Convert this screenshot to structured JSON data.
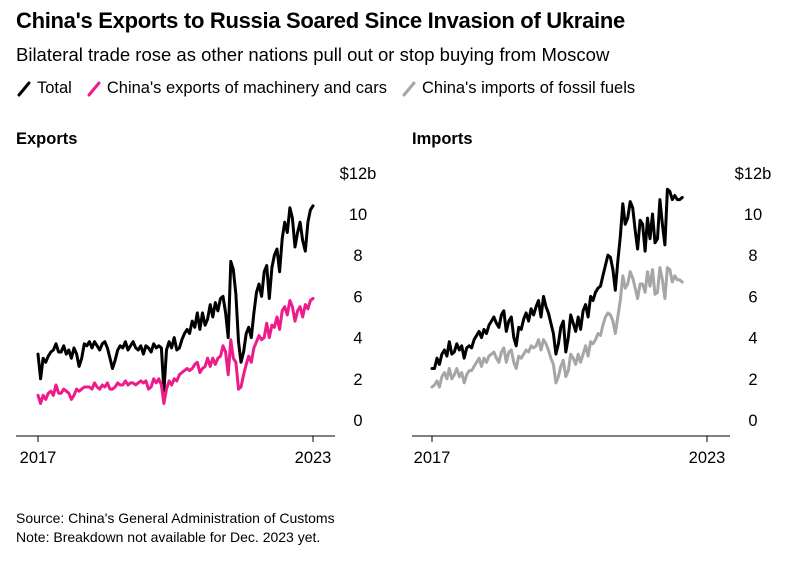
{
  "title": "China's Exports to Russia Soared Since Invasion of Ukraine",
  "subtitle": "Bilateral trade rose as other nations pull out or stop buying from Moscow",
  "legend": [
    {
      "label": "Total",
      "color": "#000000"
    },
    {
      "label": "China's exports of machinery and cars",
      "color": "#ee1b8b"
    },
    {
      "label": "China's imports of fossil fuels",
      "color": "#a6a6a6"
    }
  ],
  "source": "Source: China's General Administration of Customs",
  "note": "Note: Breakdown not available for Dec. 2023 yet.",
  "chart_data": [
    {
      "type": "line",
      "title": "Exports",
      "unit_label": "$12b",
      "ylim": [
        0,
        12
      ],
      "y_ticks": [
        "0",
        "2",
        "4",
        "6",
        "8",
        "10"
      ],
      "x_ticks": [
        "2017",
        "2023"
      ],
      "x_range": [
        "2017-01",
        "2023-12"
      ],
      "series": [
        {
          "name": "Total",
          "color": "#000000",
          "values": [
            3.2,
            2.0,
            3.0,
            2.8,
            3.1,
            3.3,
            3.4,
            3.7,
            3.3,
            3.3,
            3.6,
            3.2,
            3.4,
            3.0,
            3.5,
            3.2,
            2.6,
            3.0,
            3.7,
            3.6,
            3.8,
            3.5,
            3.8,
            3.6,
            3.4,
            3.7,
            3.8,
            3.5,
            3.0,
            2.5,
            2.9,
            3.4,
            3.6,
            3.5,
            3.8,
            3.4,
            3.6,
            3.8,
            3.5,
            3.4,
            3.6,
            3.2,
            3.6,
            3.5,
            3.3,
            3.7,
            3.5,
            3.6,
            3.5,
            1.4,
            3.4,
            3.8,
            3.5,
            4.0,
            3.4,
            3.5,
            3.9,
            4.2,
            4.4,
            4.2,
            4.8,
            4.5,
            5.2,
            4.4,
            5.2,
            4.6,
            4.9,
            5.6,
            5.0,
            5.7,
            5.3,
            5.9,
            6.0,
            5.2,
            4.0,
            7.7,
            7.3,
            6.1,
            3.8,
            2.8,
            3.3,
            4.2,
            4.5,
            4.0,
            5.2,
            6.2,
            6.6,
            6.0,
            7.2,
            7.5,
            5.9,
            7.4,
            8.0,
            8.3,
            7.2,
            8.8,
            9.6,
            9.1,
            10.3,
            9.8,
            8.4,
            9.1,
            9.6,
            8.7,
            8.2,
            9.6,
            10.2,
            10.4
          ]
        },
        {
          "name": "China's exports of machinery and cars",
          "color": "#ee1b8b",
          "values": [
            1.2,
            0.8,
            1.2,
            1.0,
            1.3,
            1.4,
            1.2,
            1.7,
            1.3,
            1.3,
            1.5,
            1.4,
            1.3,
            1.0,
            1.2,
            1.5,
            1.4,
            1.5,
            1.6,
            1.6,
            1.6,
            1.5,
            1.8,
            1.6,
            1.5,
            1.7,
            1.6,
            1.8,
            1.5,
            1.5,
            1.6,
            1.8,
            1.7,
            1.7,
            1.9,
            1.7,
            1.8,
            1.8,
            1.7,
            1.8,
            1.9,
            1.8,
            1.9,
            1.5,
            1.6,
            2.0,
            1.8,
            2.0,
            1.7,
            0.8,
            1.5,
            1.9,
            1.7,
            2.0,
            1.9,
            2.2,
            2.3,
            2.4,
            2.5,
            2.4,
            2.5,
            2.7,
            2.8,
            2.3,
            2.5,
            2.6,
            3.0,
            2.6,
            3.0,
            2.7,
            3.0,
            3.1,
            3.6,
            3.3,
            2.2,
            3.9,
            3.0,
            2.8,
            1.5,
            1.6,
            2.2,
            2.7,
            3.1,
            2.8,
            3.5,
            3.8,
            4.1,
            3.9,
            4.0,
            4.7,
            4.0,
            4.6,
            4.5,
            5.0,
            4.4,
            5.3,
            5.5,
            5.1,
            5.8,
            5.5,
            4.8,
            5.3,
            5.5,
            5.0,
            5.6,
            5.4,
            5.8,
            5.9
          ]
        }
      ]
    },
    {
      "type": "line",
      "title": "Imports",
      "unit_label": "$12b",
      "ylim": [
        0,
        12
      ],
      "y_ticks": [
        "0",
        "2",
        "4",
        "6",
        "8",
        "10"
      ],
      "x_ticks": [
        "2017",
        "2023"
      ],
      "x_range": [
        "2017-01",
        "2023-12"
      ],
      "series": [
        {
          "name": "Total",
          "color": "#000000",
          "values": [
            2.5,
            2.5,
            3.0,
            2.7,
            3.2,
            3.4,
            3.1,
            3.8,
            3.2,
            3.3,
            3.7,
            3.4,
            3.6,
            3.0,
            3.5,
            3.6,
            3.5,
            3.9,
            4.1,
            4.3,
            4.0,
            4.4,
            4.2,
            4.6,
            4.8,
            5.0,
            4.7,
            4.5,
            5.1,
            5.3,
            4.3,
            4.8,
            5.0,
            4.0,
            3.6,
            4.5,
            4.4,
            4.9,
            5.2,
            4.8,
            5.4,
            5.1,
            5.5,
            5.8,
            5.0,
            6.0,
            5.5,
            5.2,
            4.7,
            4.2,
            3.2,
            3.7,
            4.5,
            4.8,
            3.3,
            4.0,
            5.1,
            4.7,
            4.3,
            5.0,
            4.4,
            5.3,
            5.6,
            5.0,
            6.0,
            5.8,
            6.2,
            6.4,
            6.5,
            7.0,
            7.5,
            8.0,
            7.9,
            7.3,
            6.3,
            7.7,
            8.9,
            10.5,
            9.5,
            9.8,
            10.6,
            10.3,
            9.2,
            8.3,
            9.7,
            9.5,
            8.2,
            9.8,
            8.8,
            10.0,
            8.6,
            8.8,
            10.7,
            9.5,
            8.5,
            11.2,
            11.1,
            10.7,
            10.9,
            10.7,
            10.7,
            10.8
          ]
        },
        {
          "name": "China's imports of fossil fuels",
          "color": "#a6a6a6",
          "values": [
            1.6,
            1.7,
            1.9,
            1.6,
            2.1,
            2.3,
            2.0,
            2.5,
            2.0,
            2.2,
            2.5,
            2.1,
            2.3,
            1.8,
            2.2,
            2.4,
            2.4,
            2.6,
            2.8,
            3.0,
            2.6,
            3.0,
            2.8,
            3.1,
            3.2,
            3.3,
            3.0,
            2.8,
            3.3,
            3.5,
            2.8,
            3.3,
            3.4,
            2.8,
            2.5,
            3.1,
            3.0,
            3.2,
            3.4,
            3.3,
            3.6,
            3.5,
            3.6,
            3.9,
            3.4,
            3.9,
            3.7,
            3.4,
            3.0,
            2.7,
            1.8,
            2.1,
            2.6,
            2.9,
            2.1,
            2.4,
            3.2,
            3.0,
            2.7,
            3.2,
            2.8,
            3.2,
            3.6,
            3.1,
            3.8,
            3.7,
            3.9,
            4.2,
            4.1,
            4.6,
            5.0,
            5.2,
            5.1,
            4.8,
            4.2,
            5.0,
            5.8,
            7.0,
            6.4,
            6.6,
            7.2,
            6.9,
            6.4,
            5.9,
            6.6,
            6.6,
            6.2,
            7.2,
            6.5,
            7.3,
            6.1,
            6.2,
            7.4,
            6.8,
            5.9,
            7.4,
            7.3,
            6.7,
            7.0,
            6.8,
            6.8,
            6.7
          ]
        }
      ]
    }
  ]
}
